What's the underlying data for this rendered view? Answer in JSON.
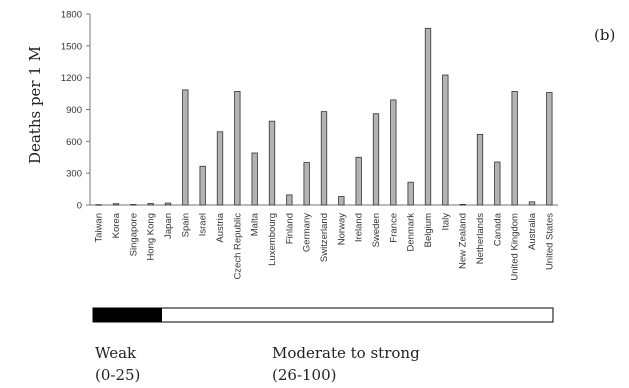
{
  "chart_data": {
    "type": "bar",
    "panel_label": "(b)",
    "ylabel": "Deaths per 1 M",
    "ylim": [
      0,
      1800
    ],
    "yticks": [
      0,
      300,
      600,
      900,
      1200,
      1500,
      1800
    ],
    "categories": [
      "Taiwan",
      "Korea",
      "Singapore",
      "Hong Kong",
      "Japan",
      "Spain",
      "Israel",
      "Austria",
      "Czech Republic",
      "Malta",
      "Luxembourg",
      "Finland",
      "Germany",
      "Switzerland",
      "Norway",
      "Ireland",
      "Sweden",
      "France",
      "Denmark",
      "Belgium",
      "Italy",
      "New Zealand",
      "Netherlands",
      "Canada",
      "United Kingdom",
      "Australia",
      "United States"
    ],
    "values": [
      3,
      12,
      5,
      14,
      18,
      1085,
      365,
      690,
      1070,
      490,
      790,
      95,
      400,
      880,
      80,
      450,
      860,
      990,
      215,
      1665,
      1225,
      6,
      665,
      405,
      1070,
      30,
      1060
    ],
    "bar_color": "#b3b3b3",
    "legend": {
      "weak_label": "Weak",
      "weak_range": "(0-25)",
      "weak_color": "#000000",
      "strong_label": "Moderate to strong",
      "strong_range": "(26-100)",
      "strong_color": "#ffffff"
    }
  }
}
